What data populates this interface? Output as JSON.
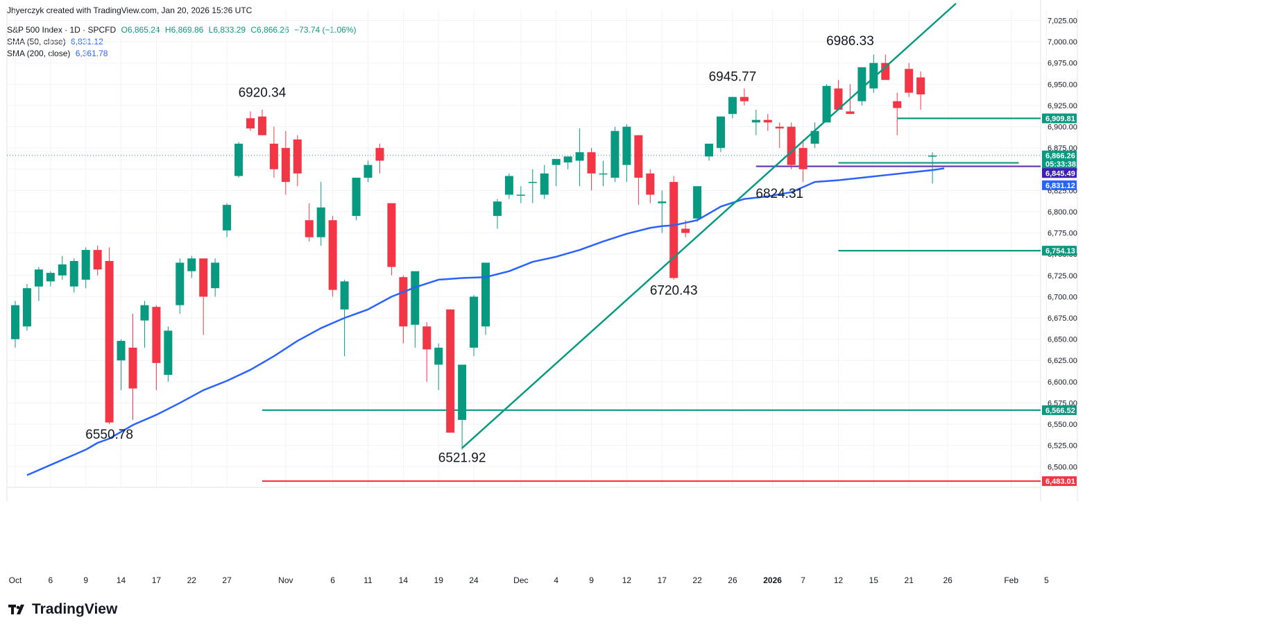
{
  "header": {
    "credit": "Jhyerczyk created with TradingView.com, Jan 20, 2026 15:36 UTC",
    "symbol": "S&P 500 Index · 1D · SPCFD",
    "open": "O6,865.24",
    "high": "H6,869.86",
    "low": "L6,833.29",
    "close": "C6,866.26",
    "change": "−73.74 (−1.06%)",
    "sma50_label": "SMA (50, close)",
    "sma50_value": "6,831.12",
    "sma200_label": "SMA (200, close)",
    "sma200_value": "6,361.78"
  },
  "logo": {
    "text": "TradingView",
    "icon": "tradingview-logo-icon"
  },
  "colors": {
    "up": "#089981",
    "down": "#f23645",
    "sma50": "#2962ff",
    "trend": "#089981",
    "support_red": "#f23645",
    "purple": "#673ab7"
  },
  "chart_data": {
    "type": "candlestick",
    "y_range": [
      6470,
      7045
    ],
    "price_ticks": [
      "6,500.00",
      "6,525.00",
      "6,550.00",
      "6,575.00",
      "6,600.00",
      "6,625.00",
      "6,650.00",
      "6,675.00",
      "6,700.00",
      "6,725.00",
      "6,750.00",
      "6,775.00",
      "6,800.00",
      "6,825.00",
      "6,850.00",
      "6,875.00",
      "6,900.00",
      "6,925.00",
      "6,950.00",
      "6,975.00",
      "7,000.00",
      "7,025.00"
    ],
    "date_ticks": [
      {
        "i": 0,
        "label": "Oct",
        "bold": false
      },
      {
        "i": 3,
        "label": "6",
        "bold": false
      },
      {
        "i": 6,
        "label": "9",
        "bold": false
      },
      {
        "i": 9,
        "label": "14",
        "bold": false
      },
      {
        "i": 12,
        "label": "17",
        "bold": false
      },
      {
        "i": 15,
        "label": "22",
        "bold": false
      },
      {
        "i": 18,
        "label": "27",
        "bold": false
      },
      {
        "i": 23,
        "label": "Nov",
        "bold": false
      },
      {
        "i": 27,
        "label": "6",
        "bold": false
      },
      {
        "i": 30,
        "label": "11",
        "bold": false
      },
      {
        "i": 33,
        "label": "14",
        "bold": false
      },
      {
        "i": 36,
        "label": "19",
        "bold": false
      },
      {
        "i": 39,
        "label": "24",
        "bold": false
      },
      {
        "i": 43,
        "label": "Dec",
        "bold": false
      },
      {
        "i": 46,
        "label": "4",
        "bold": false
      },
      {
        "i": 49,
        "label": "9",
        "bold": false
      },
      {
        "i": 52,
        "label": "12",
        "bold": false
      },
      {
        "i": 55,
        "label": "17",
        "bold": false
      },
      {
        "i": 58,
        "label": "22",
        "bold": false
      },
      {
        "i": 61,
        "label": "26",
        "bold": false
      },
      {
        "i": 64.4,
        "label": "2026",
        "bold": true
      },
      {
        "i": 67,
        "label": "7",
        "bold": false
      },
      {
        "i": 70,
        "label": "12",
        "bold": false
      },
      {
        "i": 73,
        "label": "15",
        "bold": false
      },
      {
        "i": 76,
        "label": "21",
        "bold": false
      },
      {
        "i": 79.3,
        "label": "26",
        "bold": false
      },
      {
        "i": 84.7,
        "label": "Feb",
        "bold": false
      },
      {
        "i": 87.7,
        "label": "5",
        "bold": false
      }
    ],
    "candles": [
      [
        6640,
        6695,
        6650,
        6690
      ],
      [
        6660,
        6715,
        6665,
        6710
      ],
      [
        6695,
        6735,
        6712,
        6732
      ],
      [
        6712,
        6730,
        6718,
        6728
      ],
      [
        6720,
        6748,
        6725,
        6738
      ],
      [
        6705,
        6745,
        6712,
        6742
      ],
      [
        6710,
        6758,
        6720,
        6755
      ],
      [
        6725,
        6760,
        6755,
        6732
      ],
      [
        6550,
        6758,
        6742,
        6552
      ],
      [
        6590,
        6650,
        6625,
        6648
      ],
      [
        6555,
        6680,
        6640,
        6592
      ],
      [
        6640,
        6695,
        6672,
        6690
      ],
      [
        6590,
        6690,
        6688,
        6622
      ],
      [
        6600,
        6665,
        6608,
        6660
      ],
      [
        6680,
        6745,
        6690,
        6740
      ],
      [
        6722,
        6748,
        6730,
        6745
      ],
      [
        6655,
        6745,
        6745,
        6700
      ],
      [
        6700,
        6745,
        6710,
        6740
      ],
      [
        6770,
        6810,
        6778,
        6808
      ],
      [
        6840,
        6882,
        6842,
        6880
      ],
      [
        6895,
        6918,
        6910,
        6898
      ],
      [
        6895,
        6920,
        6912,
        6890
      ],
      [
        6840,
        6900,
        6880,
        6850
      ],
      [
        6820,
        6895,
        6875,
        6835
      ],
      [
        6830,
        6890,
        6885,
        6845
      ],
      [
        6765,
        6810,
        6790,
        6770
      ],
      [
        6760,
        6835,
        6770,
        6805
      ],
      [
        6700,
        6795,
        6790,
        6708
      ],
      [
        6630,
        6720,
        6685,
        6718
      ],
      [
        6790,
        6840,
        6795,
        6840
      ],
      [
        6835,
        6860,
        6840,
        6855
      ],
      [
        6845,
        6880,
        6875,
        6860
      ],
      [
        6725,
        6810,
        6810,
        6735
      ],
      [
        6645,
        6725,
        6723,
        6665
      ],
      [
        6640,
        6720,
        6667,
        6730
      ],
      [
        6600,
        6670,
        6665,
        6638
      ],
      [
        6590,
        6645,
        6620,
        6640
      ],
      [
        6540,
        6685,
        6685,
        6540
      ],
      [
        6520,
        6565,
        6555,
        6620
      ],
      [
        6630,
        6702,
        6640,
        6700
      ],
      [
        6655,
        6740,
        6665,
        6740
      ],
      [
        6780,
        6815,
        6795,
        6812
      ],
      [
        6815,
        6845,
        6820,
        6842
      ],
      [
        6810,
        6830,
        6820,
        6820
      ],
      [
        6810,
        6850,
        6835,
        6835
      ],
      [
        6815,
        6855,
        6820,
        6845
      ],
      [
        6830,
        6860,
        6855,
        6862
      ],
      [
        6850,
        6865,
        6858,
        6865
      ],
      [
        6830,
        6898,
        6860,
        6870
      ],
      [
        6825,
        6875,
        6870,
        6845
      ],
      [
        6830,
        6860,
        6845,
        6845
      ],
      [
        6835,
        6900,
        6840,
        6895
      ],
      [
        6835,
        6903,
        6855,
        6900
      ],
      [
        6808,
        6890,
        6890,
        6840
      ],
      [
        6810,
        6850,
        6845,
        6820
      ],
      [
        6775,
        6825,
        6810,
        6812
      ],
      [
        6720,
        6842,
        6835,
        6722
      ],
      [
        6770,
        6790,
        6780,
        6775
      ],
      [
        6788,
        6830,
        6792,
        6830
      ],
      [
        6860,
        6878,
        6865,
        6880
      ],
      [
        6870,
        6912,
        6875,
        6912
      ],
      [
        6910,
        6935,
        6915,
        6935
      ],
      [
        6925,
        6945,
        6935,
        6930
      ],
      [
        6890,
        6920,
        6905,
        6908
      ],
      [
        6895,
        6915,
        6908,
        6905
      ],
      [
        6875,
        6905,
        6900,
        6898
      ],
      [
        6850,
        6905,
        6900,
        6855
      ],
      [
        6835,
        6885,
        6875,
        6850
      ],
      [
        6875,
        6905,
        6880,
        6895
      ],
      [
        6905,
        6950,
        6905,
        6948
      ],
      [
        6920,
        6955,
        6945,
        6920
      ],
      [
        6915,
        6950,
        6918,
        6915
      ],
      [
        6925,
        6955,
        6930,
        6970
      ],
      [
        6940,
        6985,
        6945,
        6975
      ],
      [
        6960,
        6985,
        6975,
        6955
      ],
      [
        6890,
        6940,
        6930,
        6922
      ],
      [
        6935,
        6975,
        6968,
        6940
      ],
      [
        6920,
        6965,
        6958,
        6938
      ],
      [
        6833,
        6870,
        6865,
        6866
      ]
    ],
    "sma50": [
      [
        1,
        6490
      ],
      [
        3,
        6502
      ],
      [
        5,
        6514
      ],
      [
        6,
        6520
      ],
      [
        7,
        6528
      ],
      [
        8,
        6533
      ],
      [
        10,
        6549
      ],
      [
        12,
        6561
      ],
      [
        14,
        6575
      ],
      [
        16,
        6590
      ],
      [
        18,
        6601
      ],
      [
        20,
        6614
      ],
      [
        22,
        6630
      ],
      [
        24,
        6648
      ],
      [
        26,
        6663
      ],
      [
        28,
        6675
      ],
      [
        30,
        6685
      ],
      [
        32,
        6700
      ],
      [
        34,
        6711
      ],
      [
        36,
        6720
      ],
      [
        38,
        6722
      ],
      [
        40,
        6723
      ],
      [
        42,
        6730
      ],
      [
        44,
        6741
      ],
      [
        46,
        6747
      ],
      [
        48,
        6755
      ],
      [
        50,
        6765
      ],
      [
        52,
        6774
      ],
      [
        54,
        6781
      ],
      [
        55,
        6783
      ],
      [
        56,
        6784
      ],
      [
        58,
        6790
      ],
      [
        60,
        6806
      ],
      [
        62,
        6815
      ],
      [
        64,
        6818
      ],
      [
        66,
        6823
      ],
      [
        68,
        6835
      ],
      [
        70,
        6837
      ],
      [
        72,
        6840
      ],
      [
        74,
        6843
      ],
      [
        76,
        6846
      ],
      [
        78,
        6849
      ],
      [
        79,
        6851
      ]
    ],
    "trendline": {
      "start": [
        38,
        6521.92
      ],
      "end": [
        80,
        7045
      ]
    },
    "support_lines": [
      {
        "value": 6566.52,
        "label": "6,566.52",
        "from": 21,
        "color": "trend"
      },
      {
        "value": 6483.01,
        "label": "6,483.01",
        "from": 21,
        "color": "support_red"
      },
      {
        "value": 6754.13,
        "label": "6,754.13",
        "from": 70,
        "color": "trend"
      },
      {
        "value": 6909.81,
        "label": "6,909.81",
        "from": 75,
        "color": "trend"
      },
      {
        "value": 6857.5,
        "label": "",
        "from": 70,
        "color": "trend"
      },
      {
        "value": 6853.38,
        "label": "6,853.38",
        "from": 63,
        "color": "purple"
      }
    ],
    "current": {
      "value": 6866.26,
      "label": "6,866.26",
      "countdown": "05:33:38"
    },
    "sma_badge": {
      "value": 6831.12,
      "label": "6,831.12"
    },
    "extra_badge": {
      "value": 6845.49,
      "label": "6,845.49"
    },
    "annotations": [
      {
        "text": "6920.34",
        "i": 21,
        "price": 6920.34,
        "dy": -18
      },
      {
        "text": "6550.78",
        "i": 8,
        "price": 6550.78,
        "dy": 22
      },
      {
        "text": "6521.92",
        "i": 38,
        "price": 6521.92,
        "dy": 20
      },
      {
        "text": "6720.43",
        "i": 56,
        "price": 6720.43,
        "dy": 22
      },
      {
        "text": "6945.77",
        "i": 61,
        "price": 6945.77,
        "dy": -10
      },
      {
        "text": "6824.31",
        "i": 65,
        "price": 6824.31,
        "dy": 10
      },
      {
        "text": "6986.33",
        "i": 71,
        "price": 6986.33,
        "dy": -12
      }
    ]
  }
}
